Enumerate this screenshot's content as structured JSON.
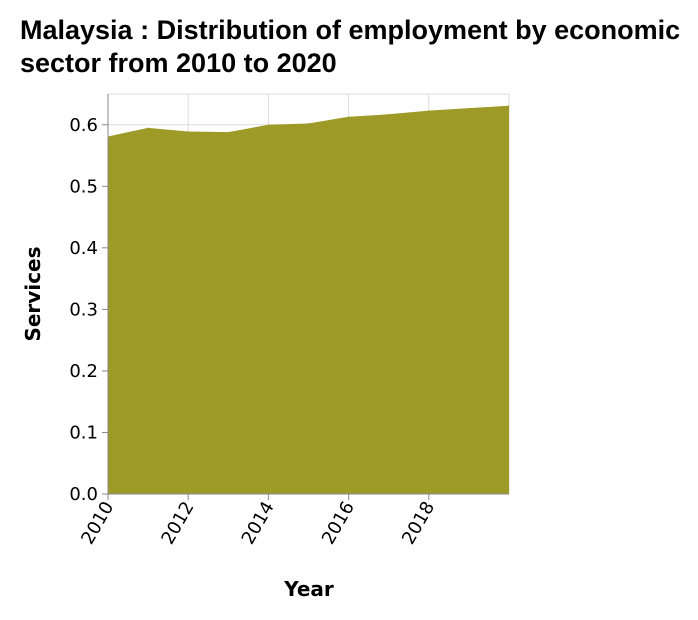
{
  "chart_data": {
    "type": "area",
    "title": "Malaysia : Distribution of employment by economic sector from 2010 to 2020",
    "xlabel": "Year",
    "ylabel": "Services",
    "x": [
      2010,
      2011,
      2012,
      2013,
      2014,
      2015,
      2016,
      2017,
      2018,
      2019,
      2020
    ],
    "series": [
      {
        "values": [
          0.581,
          0.595,
          0.589,
          0.588,
          0.6,
          0.602,
          0.613,
          0.617,
          0.623,
          0.627,
          0.631
        ]
      }
    ],
    "xlim": [
      2010,
      2020
    ],
    "ylim": [
      0,
      0.65
    ],
    "x_ticks": [
      "2010",
      "2012",
      "2014",
      "2016",
      "2018"
    ],
    "y_ticks": [
      "0.0",
      "0.1",
      "0.2",
      "0.3",
      "0.4",
      "0.5",
      "0.6"
    ],
    "fill_color": "#9e9a27",
    "grid": true
  }
}
